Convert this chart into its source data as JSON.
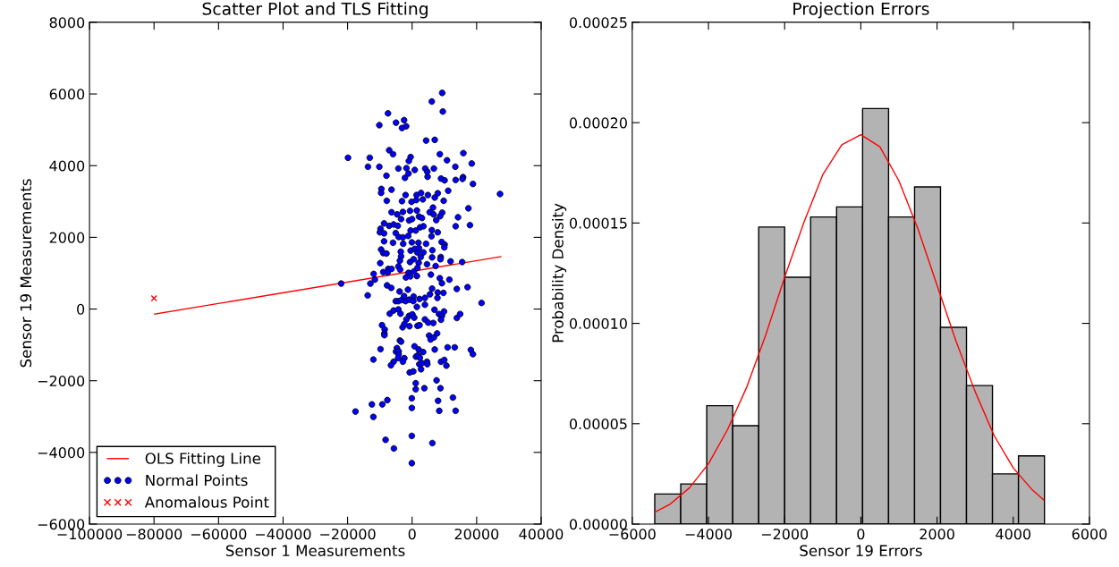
{
  "chart_data": [
    {
      "type": "scatter",
      "title": "Scatter Plot and TLS Fitting",
      "xlabel": "Sensor 1 Measurements",
      "ylabel": "Sensor 19 Measurements",
      "xlim": [
        -100000,
        40000
      ],
      "xticks": [
        {
          "value": -100000,
          "label": "−100000"
        },
        {
          "value": -80000,
          "label": "−80000"
        },
        {
          "value": -60000,
          "label": "−60000"
        },
        {
          "value": -40000,
          "label": "−40000"
        },
        {
          "value": -20000,
          "label": "−20000"
        },
        0,
        20000,
        40000
      ],
      "ylim": [
        -6000,
        8000
      ],
      "yticks": [
        {
          "value": -6000,
          "label": "−6000"
        },
        {
          "value": -4000,
          "label": "−4000"
        },
        {
          "value": -2000,
          "label": "−2000"
        },
        0,
        2000,
        4000,
        6000,
        8000
      ],
      "legend": "bottom left",
      "grid": false,
      "series": [
        {
          "name": "OLS Fitting Line",
          "type": "line",
          "color": "#ff0000",
          "marker": "none",
          "x": [
            -79800,
            27500
          ],
          "values": [
            -140,
            1460
          ]
        },
        {
          "name": "Normal Points",
          "type": "scatter",
          "color": "#0000ff",
          "marker": "circle",
          "x": [
            9330,
            6100,
            9520,
            -7480,
            -2490,
            -4990,
            -10160,
            -1850,
            -3140,
            4340,
            7020,
            -19870,
            -13120,
            -7110,
            -5910,
            -460,
            -1020,
            8590,
            15890,
            10810,
            18480,
            -13680,
            -10160,
            -4250,
            -1760,
            830,
            4070,
            6750,
            13400,
            -7950,
            -2220,
            -1110,
            4710,
            4800,
            8960,
            10070,
            13490,
            15800,
            15620,
            18850,
            -9520,
            -9610,
            -6380,
            -2030,
            1390,
            2770,
            4900,
            7950,
            11180,
            27260,
            -7850,
            -3140,
            -180,
            1290,
            3330,
            7020,
            9790,
            -6380,
            -4620,
            -2860,
            -650,
            1480,
            5450,
            6470,
            6650,
            9330,
            17460,
            -8690,
            -9790,
            -7110,
            -5730,
            -4440,
            -3420,
            -920,
            0,
            2130,
            3050,
            2490,
            3510,
            7480,
            8690,
            13490,
            14230,
            17930,
            -9980,
            -8690,
            -5080,
            -4160,
            -2860,
            -1200,
            -460,
            1110,
            6100,
            7950,
            6010,
            -8690,
            -5910,
            -2770,
            -90,
            1940,
            4340,
            9150,
            10070,
            -9610,
            -8960,
            -7950,
            -3510,
            -460,
            830,
            2130,
            1570,
            3510,
            6280,
            9980,
            -3420,
            -3790,
            -650,
            460,
            2680,
            6190,
            8870,
            11920,
            15520,
            -9890,
            -7390,
            -6380,
            -4250,
            -3700,
            2030,
            4620,
            7300,
            8780,
            -11920,
            -8960,
            -7580,
            -1110,
            550,
            1660,
            -11550,
            -12940,
            -21990,
            -1940,
            -550,
            1480,
            5820,
            8590,
            11550,
            9240,
            -13770,
            -7760,
            -6470,
            -3880,
            -1290,
            6190,
            7950,
            9700,
            13860,
            17190,
            21530,
            -5080,
            -4250,
            -3330,
            -2490,
            -2030,
            -920,
            460,
            370,
            1480,
            2310,
            3970,
            5540,
            7850,
            3970,
            -6930,
            -5730,
            -4250,
            -3600,
            -920,
            90,
            650,
            -1760,
            3970,
            6930,
            8320,
            9240,
            9890,
            8960,
            13860,
            14880,
            -9330,
            -8500,
            -8590,
            -8590,
            -2960,
            -2400,
            -830,
            1660,
            2310,
            4990,
            6560,
            5270,
            6750,
            7760,
            5730,
            -3790,
            -3420,
            -9790,
            -4710,
            -4990,
            -4160,
            -4160,
            740,
            2030,
            3420,
            7020,
            11000,
            13210,
            18200,
            18850,
            -12010,
            -5730,
            -6560,
            -4340,
            -2400,
            -2860,
            1200,
            1760,
            2400,
            2220,
            3050,
            4620,
            4710,
            2770,
            8960,
            9980,
            10630,
            -740,
            370,
            1110,
            1110,
            3790,
            7580,
            8780,
            -7670,
            -9240,
            -12470,
            -12010,
            -17560,
            -90,
            -90,
            8040,
            12660,
            8410,
            13490,
            -8220,
            -5640,
            -90,
            6280,
            -90
          ],
          "values": [
            6030,
            5790,
            5510,
            5460,
            5270,
            5200,
            5130,
            5100,
            5050,
            4700,
            4720,
            4220,
            4220,
            4430,
            4320,
            4240,
            4130,
            4320,
            4350,
            4150,
            4060,
            3970,
            3970,
            3920,
            3930,
            3880,
            3920,
            3920,
            3970,
            3720,
            3660,
            3780,
            3830,
            3690,
            3640,
            3590,
            3600,
            3680,
            3630,
            3490,
            3350,
            3240,
            3330,
            3180,
            3180,
            3240,
            3180,
            3230,
            3300,
            3210,
            3020,
            3010,
            2990,
            3040,
            3060,
            3110,
            3020,
            2700,
            2640,
            2710,
            2740,
            2750,
            2700,
            2830,
            2640,
            2690,
            2810,
            2390,
            2240,
            2320,
            2360,
            2320,
            2510,
            2470,
            2510,
            2580,
            2540,
            2280,
            2310,
            2480,
            2590,
            2310,
            2560,
            2340,
            2140,
            2110,
            2120,
            2010,
            2000,
            2040,
            2190,
            2190,
            2200,
            2140,
            2030,
            1890,
            1850,
            1820,
            1860,
            1850,
            1820,
            1870,
            1800,
            1660,
            1560,
            1550,
            1600,
            1630,
            1680,
            1700,
            1580,
            1580,
            1640,
            1720,
            1470,
            1350,
            1310,
            1390,
            1450,
            1440,
            1450,
            1330,
            1310,
            1280,
            1120,
            1120,
            1190,
            1100,
            1290,
            1250,
            1200,
            1390,
            980,
            1030,
            1020,
            1010,
            1050,
            1150,
            820,
            710,
            710,
            880,
            910,
            920,
            960,
            860,
            820,
            720,
            380,
            660,
            590,
            490,
            540,
            570,
            460,
            450,
            560,
            610,
            170,
            220,
            220,
            250,
            360,
            220,
            260,
            350,
            220,
            60,
            280,
            310,
            410,
            310,
            120,
            -130,
            -40,
            -10,
            -130,
            -190,
            -150,
            -240,
            -290,
            -290,
            -20,
            -140,
            -190,
            -70,
            -300,
            -250,
            -140,
            -450,
            -570,
            -680,
            -730,
            -510,
            -420,
            -480,
            -470,
            -450,
            -380,
            -390,
            -740,
            -790,
            -680,
            -850,
            -880,
            -910,
            -1120,
            -1090,
            -1190,
            -1180,
            -1270,
            -1040,
            -1130,
            -1200,
            -1130,
            -1070,
            -1070,
            -1140,
            -1260,
            -1410,
            -1470,
            -1570,
            -1370,
            -1370,
            -1470,
            -1330,
            -1290,
            -1360,
            -1540,
            -1510,
            -1470,
            -1540,
            -1680,
            -1470,
            -1420,
            -1580,
            -1770,
            -1740,
            -2070,
            -2240,
            -2210,
            -1990,
            -2210,
            -2540,
            -2660,
            -2660,
            -3010,
            -2860,
            -2490,
            -2760,
            -2560,
            -2470,
            -2840,
            -2840,
            -3650,
            -3890,
            -3540,
            -3740,
            -4300
          ]
        },
        {
          "name": "Anomalous Point",
          "type": "scatter",
          "color": "#ff0000",
          "marker": "cross",
          "x": [
            -80000
          ],
          "values": [
            300
          ]
        }
      ]
    },
    {
      "type": "histogram",
      "title": "Projection Errors",
      "xlabel": "Sensor 19 Errors",
      "ylabel": "Probability Density",
      "color": "#b3b3b3",
      "bins": [
        -5409,
        -4727,
        -4045,
        -3363,
        -2681,
        -1999,
        -1318,
        -636,
        46,
        728,
        1410,
        2091,
        2773,
        3455,
        4137,
        4819
      ],
      "values": [
        1.5e-05,
        2e-05,
        5.9e-05,
        4.9e-05,
        0.000148,
        0.000123,
        0.000153,
        0.000158,
        0.000207,
        0.000153,
        0.000168,
        9.8e-05,
        6.9e-05,
        2.5e-05,
        3.4e-05
      ],
      "xlim": [
        -6000,
        6000
      ],
      "xticks": [
        {
          "value": -6000,
          "label": "−6000"
        },
        {
          "value": -4000,
          "label": "−4000"
        },
        {
          "value": -2000,
          "label": "−2000"
        },
        0,
        2000,
        4000,
        6000
      ],
      "ylim": [
        0,
        0.00025
      ],
      "yticks": [
        {
          "value": 0,
          "label": "0.00000"
        },
        {
          "value": 5e-05,
          "label": "0.00005"
        },
        {
          "value": 0.0001,
          "label": "0.00010"
        },
        {
          "value": 0.00015,
          "label": "0.00015"
        },
        {
          "value": 0.0002,
          "label": "0.00020"
        },
        {
          "value": 0.00025,
          "label": "0.00025"
        }
      ],
      "grid": false,
      "series": [
        {
          "type": "line",
          "color": "#ff0000",
          "x": [
            -5400,
            -5000,
            -4500,
            -4000,
            -3500,
            -3000,
            -2500,
            -2000,
            -1500,
            -1000,
            -500,
            0,
            500,
            1000,
            1500,
            2000,
            2500,
            3000,
            3500,
            4000,
            4500,
            4800
          ],
          "values": [
            6e-06,
            1e-05,
            1.8e-05,
            3e-05,
            4.7e-05,
            6.8e-05,
            9.4e-05,
            0.000123,
            0.00015,
            0.000174,
            0.000189,
            0.000194,
            0.000188,
            0.000171,
            0.000147,
            0.000119,
            9.1e-05,
            6.6e-05,
            4.4e-05,
            2.8e-05,
            1.7e-05,
            1.2e-05
          ]
        }
      ]
    }
  ]
}
